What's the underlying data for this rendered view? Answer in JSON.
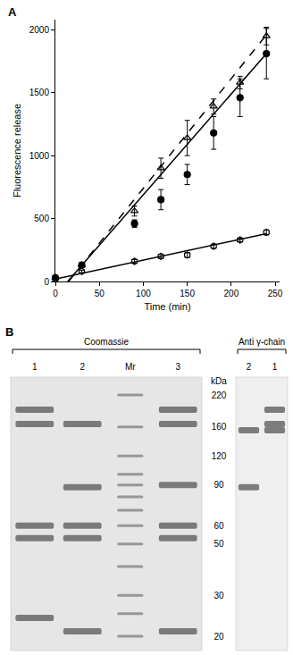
{
  "chart_data": {
    "type": "scatter",
    "panel_label": "A",
    "x_label": "Time (min)",
    "y_label": "Fluorescence release",
    "xlim": [
      0,
      255
    ],
    "xticks": [
      0,
      50,
      100,
      150,
      200,
      250
    ],
    "ylim": [
      0,
      2080
    ],
    "yticks": [
      0,
      500,
      1000,
      1500,
      2000
    ],
    "grid": false,
    "series": [
      {
        "type": "scatter",
        "marker": "triangle-up-open",
        "color": "#000000",
        "x": [
          0,
          30,
          90,
          120,
          150,
          180,
          210,
          240
        ],
        "values": [
          30,
          130,
          560,
          900,
          1140,
          1390,
          1580,
          1950
        ],
        "error": [
          10,
          15,
          40,
          80,
          140,
          60,
          50,
          70
        ]
      },
      {
        "type": "scatter",
        "marker": "circle",
        "color": "#000000",
        "x": [
          0,
          30,
          90,
          120,
          150,
          180,
          210,
          240
        ],
        "values": [
          30,
          130,
          460,
          650,
          850,
          1180,
          1460,
          1810
        ],
        "error": [
          10,
          20,
          30,
          80,
          80,
          130,
          150,
          200
        ]
      },
      {
        "type": "scatter",
        "marker": "hexagon-open",
        "color": "#000000",
        "x": [
          0,
          30,
          90,
          120,
          150,
          180,
          210,
          240
        ],
        "values": [
          20,
          80,
          160,
          200,
          210,
          280,
          330,
          390
        ],
        "error": [
          10,
          10,
          15,
          15,
          20,
          15,
          15,
          20
        ]
      },
      {
        "type": "line",
        "line_style": "dash",
        "color": "#000000",
        "x": [
          15,
          240
        ],
        "values": [
          0,
          1960
        ]
      },
      {
        "type": "line",
        "line_style": "solid",
        "color": "#000000",
        "x": [
          14,
          240
        ],
        "values": [
          0,
          1810
        ]
      },
      {
        "type": "line",
        "line_style": "solid",
        "color": "#000000",
        "x": [
          0,
          240
        ],
        "values": [
          20,
          380
        ]
      }
    ]
  },
  "panel_b": {
    "panel_label": "B",
    "unit": "kDa",
    "scale_ticks": [
      220,
      160,
      120,
      90,
      60,
      50,
      30,
      20
    ],
    "gels": [
      {
        "title": "Coomassie",
        "lanes": [
          {
            "label": "1",
            "bands": [
              190,
              165,
              60,
              53,
              24
            ]
          },
          {
            "label": "2",
            "bands": [
              165,
              88,
              60,
              53,
              21
            ]
          },
          {
            "label": "Mr",
            "bands": [
              220,
              160,
              120,
              100,
              90,
              80,
              70,
              60,
              50,
              40,
              30,
              25,
              20
            ]
          },
          {
            "label": "3",
            "bands": [
              190,
              165,
              90,
              60,
              53,
              21
            ]
          }
        ]
      },
      {
        "title": "Anti γ-chain",
        "lanes": [
          {
            "label": "2",
            "bands": [
              155,
              88
            ]
          },
          {
            "label": "1",
            "bands": [
              190,
              165,
              155
            ]
          }
        ]
      }
    ]
  }
}
